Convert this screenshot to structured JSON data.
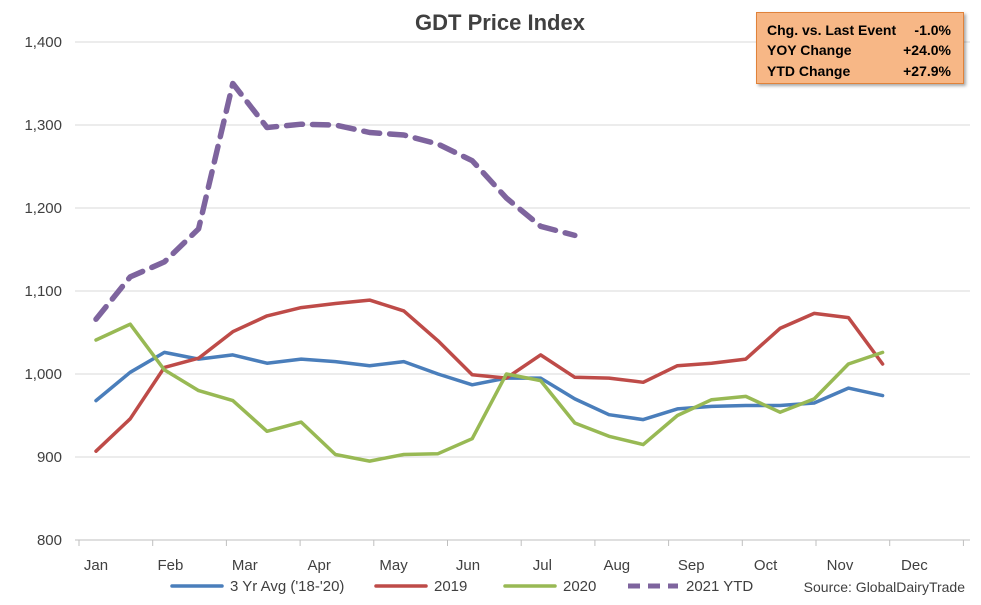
{
  "chart_data": {
    "type": "line",
    "title": "GDT Price Index",
    "ylim": [
      800,
      1400
    ],
    "yticks": [
      "800",
      "900",
      "1,000",
      "1,100",
      "1,200",
      "1,300",
      "1,400"
    ],
    "ytick_values": [
      800,
      900,
      1000,
      1100,
      1200,
      1300,
      1400
    ],
    "month_labels": [
      "Jan",
      "Feb",
      "Mar",
      "Apr",
      "May",
      "Jun",
      "Jul",
      "Aug",
      "Sep",
      "Oct",
      "Nov",
      "Dec"
    ],
    "events_per_year": 24,
    "grid": "horizontal",
    "legend_position": "bottom",
    "series": [
      {
        "name": "3 Yr Avg ('18-'20)",
        "color": "#4A7EBB",
        "dash": false,
        "values": [
          968,
          1002,
          1026,
          1018,
          1023,
          1013,
          1018,
          1015,
          1010,
          1015,
          1000,
          987,
          995,
          995,
          970,
          951,
          945,
          958,
          961,
          962,
          962,
          965,
          983,
          974
        ]
      },
      {
        "name": "2019",
        "color": "#BE4B48",
        "dash": false,
        "values": [
          907,
          946,
          1008,
          1019,
          1051,
          1070,
          1080,
          1085,
          1089,
          1076,
          1040,
          999,
          995,
          1023,
          996,
          995,
          990,
          1010,
          1013,
          1018,
          1055,
          1073,
          1068,
          1012
        ]
      },
      {
        "name": "2020",
        "color": "#98B954",
        "dash": false,
        "values": [
          1041,
          1060,
          1005,
          980,
          968,
          931,
          942,
          903,
          895,
          903,
          904,
          922,
          1000,
          992,
          941,
          925,
          915,
          950,
          969,
          973,
          954,
          970,
          1012,
          1026
        ]
      },
      {
        "name": "2021 YTD",
        "color": "#7E649E",
        "dash": true,
        "values": [
          1066,
          1117,
          1135,
          1175,
          1350,
          1297,
          1301,
          1300,
          1291,
          1288,
          1277,
          1257,
          1212,
          1178,
          1167
        ]
      }
    ],
    "source": "Source: GlobalDairyTrade"
  },
  "stats_box": {
    "rows": [
      {
        "label": "Chg. vs. Last Event",
        "value": "-1.0%"
      },
      {
        "label": "YOY Change",
        "value": "+24.0%"
      },
      {
        "label": "YTD Change",
        "value": "+27.9%"
      }
    ],
    "background": "#F7B786",
    "border": "#E0823A"
  }
}
